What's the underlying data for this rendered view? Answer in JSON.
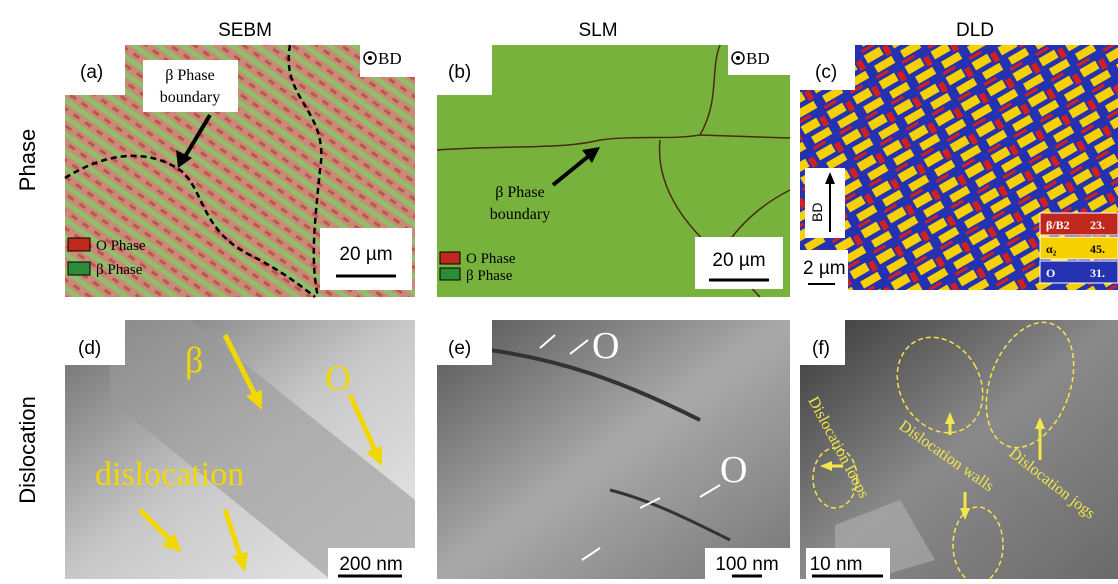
{
  "columns": [
    "SEBM",
    "SLM",
    "DLD"
  ],
  "rows": [
    "Phase",
    "Dislocation"
  ],
  "panels": {
    "a": {
      "label": "(a)",
      "bd": "BD",
      "callout": [
        "β Phase",
        "boundary"
      ],
      "legend": [
        "O Phase",
        "β Phase"
      ],
      "scale": "20 µm"
    },
    "b": {
      "label": "(b)",
      "bd": "BD",
      "callout": [
        "β Phase",
        "boundary"
      ],
      "legend": [
        "O Phase",
        "β Phase"
      ],
      "scale": "20 µm"
    },
    "c": {
      "label": "(c)",
      "bd": "BD",
      "scale": "2 µm",
      "legend": [
        [
          "β/B2",
          "23."
        ],
        [
          "α₂",
          "45."
        ],
        [
          "O",
          "31."
        ]
      ]
    },
    "d": {
      "label": "(d)",
      "beta": "β",
      "o": "O",
      "dislocation": "dislocation",
      "scale": "200 nm"
    },
    "e": {
      "label": "(e)",
      "o1": "O",
      "o2": "O",
      "scale": "100 nm"
    },
    "f": {
      "label": "(f)",
      "loops": "Dislocation loops",
      "walls": "Dislocation walls",
      "jogs": "Dislocation jogs",
      "scale": "10 nm"
    }
  }
}
